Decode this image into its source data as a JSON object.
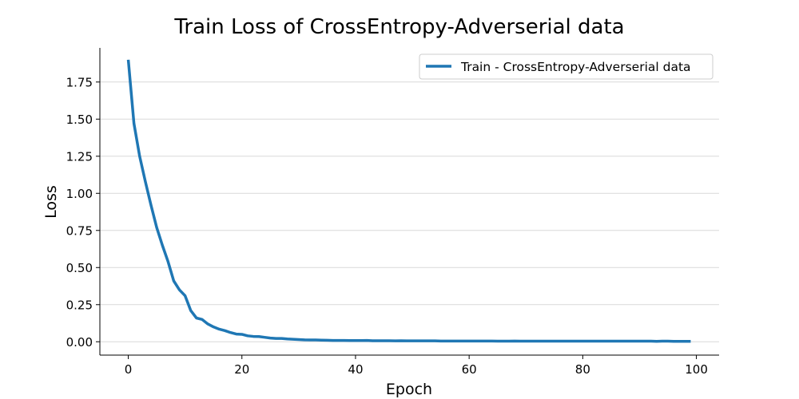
{
  "chart_data": {
    "type": "line",
    "title": "Train Loss of CrossEntropy-Adverserial data",
    "xlabel": "Epoch",
    "ylabel": "Loss",
    "xlim": [
      -5,
      104
    ],
    "ylim": [
      -0.09,
      1.98
    ],
    "x_ticks": [
      0,
      20,
      40,
      60,
      80,
      100
    ],
    "y_ticks": [
      0.0,
      0.25,
      0.5,
      0.75,
      1.0,
      1.25,
      1.5,
      1.75
    ],
    "y_tick_labels": [
      "0.00",
      "0.25",
      "0.50",
      "0.75",
      "1.00",
      "1.25",
      "1.50",
      "1.75"
    ],
    "x_tick_labels": [
      "0",
      "20",
      "40",
      "60",
      "80",
      "100"
    ],
    "grid": {
      "x": false,
      "y": true
    },
    "spines": {
      "top": false,
      "right": false
    },
    "legend": {
      "placement": "top-right"
    },
    "series": [
      {
        "name": "Train - CrossEntropy-Adverserial data",
        "color": "#1f77b4",
        "x": [
          0,
          1,
          2,
          3,
          4,
          5,
          6,
          7,
          8,
          9,
          10,
          11,
          12,
          13,
          14,
          15,
          16,
          17,
          18,
          19,
          20,
          21,
          22,
          23,
          24,
          25,
          26,
          27,
          28,
          29,
          30,
          31,
          32,
          33,
          34,
          35,
          36,
          37,
          38,
          39,
          40,
          41,
          42,
          43,
          44,
          45,
          46,
          47,
          48,
          49,
          50,
          51,
          52,
          53,
          54,
          55,
          56,
          57,
          58,
          59,
          60,
          61,
          62,
          63,
          64,
          65,
          66,
          67,
          68,
          69,
          70,
          71,
          72,
          73,
          74,
          75,
          76,
          77,
          78,
          79,
          80,
          81,
          82,
          83,
          84,
          85,
          86,
          87,
          88,
          89,
          90,
          91,
          92,
          93,
          94,
          95,
          96,
          97,
          98,
          99
        ],
        "y": [
          1.9,
          1.47,
          1.25,
          1.08,
          0.92,
          0.77,
          0.65,
          0.54,
          0.41,
          0.35,
          0.31,
          0.21,
          0.16,
          0.15,
          0.12,
          0.1,
          0.085,
          0.075,
          0.062,
          0.052,
          0.05,
          0.04,
          0.036,
          0.035,
          0.03,
          0.025,
          0.022,
          0.022,
          0.019,
          0.017,
          0.015,
          0.013,
          0.012,
          0.012,
          0.011,
          0.01,
          0.009,
          0.009,
          0.009,
          0.008,
          0.008,
          0.008,
          0.009,
          0.007,
          0.007,
          0.007,
          0.007,
          0.006,
          0.007,
          0.006,
          0.006,
          0.006,
          0.006,
          0.006,
          0.006,
          0.005,
          0.005,
          0.005,
          0.005,
          0.005,
          0.005,
          0.005,
          0.005,
          0.005,
          0.005,
          0.004,
          0.004,
          0.004,
          0.005,
          0.004,
          0.004,
          0.004,
          0.004,
          0.004,
          0.004,
          0.004,
          0.004,
          0.004,
          0.004,
          0.004,
          0.004,
          0.004,
          0.004,
          0.004,
          0.004,
          0.004,
          0.004,
          0.004,
          0.004,
          0.004,
          0.004,
          0.004,
          0.004,
          0.003,
          0.004,
          0.004,
          0.003,
          0.003,
          0.003,
          0.003
        ]
      }
    ]
  }
}
